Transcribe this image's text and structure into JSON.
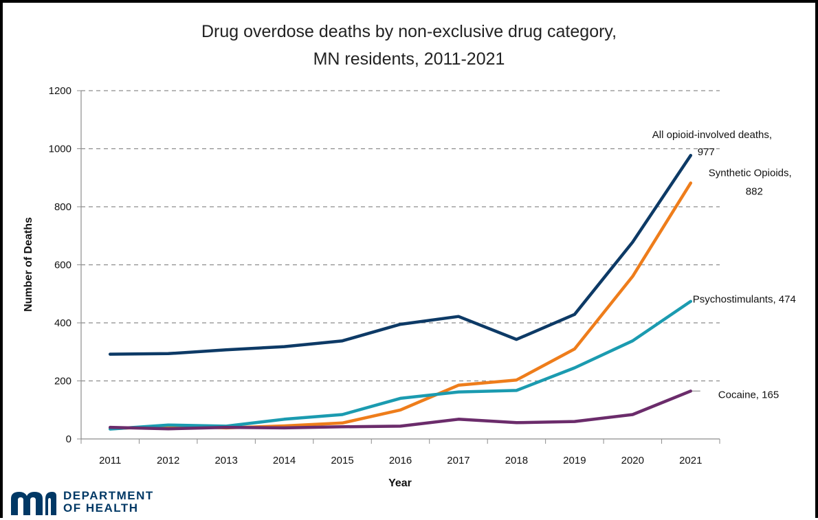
{
  "title": {
    "line1": "Drug overdose deaths by non-exclusive drug category,",
    "line2": "MN residents, 2011-2021"
  },
  "logo": {
    "line1": "DEPARTMENT",
    "line2": "OF HEALTH",
    "color": "#003865"
  },
  "chart_data": {
    "type": "line",
    "title": "Drug overdose deaths by non-exclusive drug category, MN residents, 2011-2021",
    "xlabel": "Year",
    "ylabel": "Number of Deaths",
    "ylim": [
      0,
      1200
    ],
    "yticks": [
      0,
      200,
      400,
      600,
      800,
      1000,
      1200
    ],
    "grid": "horizontal dashed",
    "x": [
      "2011",
      "2012",
      "2013",
      "2014",
      "2015",
      "2016",
      "2017",
      "2018",
      "2019",
      "2020",
      "2021"
    ],
    "series": [
      {
        "name": "All opioid-involved deaths",
        "color": "#0d3a66",
        "values": [
          292,
          294,
          307,
          318,
          338,
          395,
          422,
          343,
          429,
          678,
          977
        ],
        "label_line1": "All opioid-involved deaths,",
        "label_line2": "977"
      },
      {
        "name": "Synthetic Opioids",
        "color": "#ee7d1b",
        "values": [
          35,
          45,
          38,
          45,
          55,
          100,
          185,
          203,
          310,
          560,
          882
        ],
        "label_line1": "Synthetic Opioids,",
        "label_line2": "882"
      },
      {
        "name": "Psychostimulants",
        "color": "#1b9bb0",
        "values": [
          34,
          48,
          44,
          68,
          84,
          140,
          162,
          167,
          245,
          338,
          474
        ],
        "label_line1": "Psychostimulants, 474"
      },
      {
        "name": "Cocaine",
        "color": "#6b2c6b",
        "values": [
          40,
          35,
          40,
          38,
          42,
          44,
          68,
          56,
          60,
          84,
          165
        ],
        "label_line1": "Cocaine, 165"
      }
    ]
  }
}
